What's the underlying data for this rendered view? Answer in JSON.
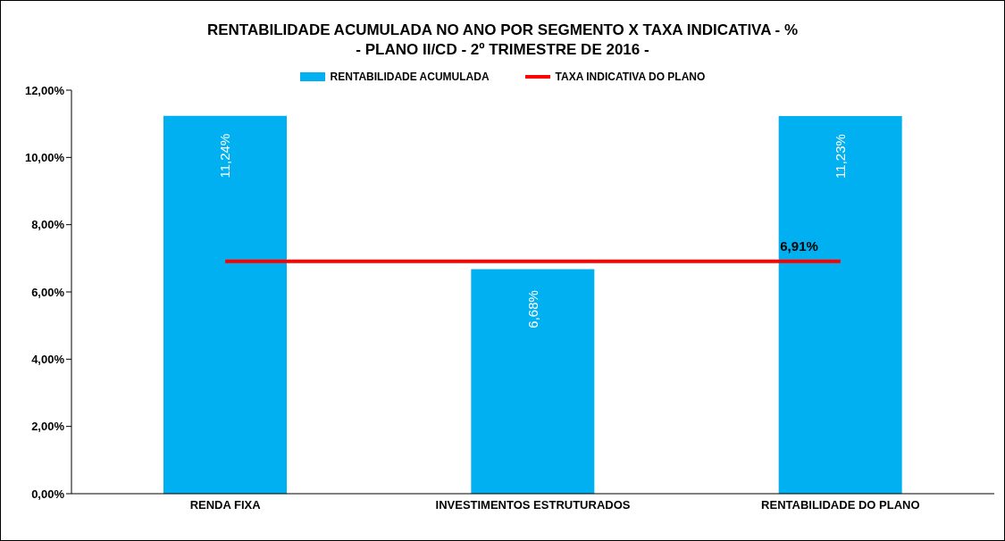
{
  "chart_data": {
    "type": "bar",
    "title": "RENTABILIDADE ACUMULADA NO ANO POR SEGMENTO X TAXA INDICATIVA  - %",
    "subtitle": "- PLANO II/CD - 2º TRIMESTRE DE 2016 -",
    "categories": [
      "RENDA FIXA",
      "INVESTIMENTOS ESTRUTURADOS",
      "RENTABILIDADE DO PLANO"
    ],
    "series": [
      {
        "name": "RENTABILIDADE ACUMULADA",
        "color": "#00b0f0",
        "values": [
          11.24,
          6.68,
          11.23
        ],
        "value_labels": [
          "11,24%",
          "6,68%",
          "11,23%"
        ]
      },
      {
        "name": "TAXA INDICATIVA DO PLANO",
        "type": "line",
        "color": "#ff0000",
        "values": [
          6.91,
          6.91,
          6.91
        ],
        "value_labels": [
          null,
          null,
          "6,91%"
        ]
      }
    ],
    "ylim": [
      0,
      12
    ],
    "yticks": [
      {
        "value": 0,
        "label": "0,00%"
      },
      {
        "value": 2,
        "label": "2,00%"
      },
      {
        "value": 4,
        "label": "4,00%"
      },
      {
        "value": 6,
        "label": "6,00%"
      },
      {
        "value": 8,
        "label": "8,00%"
      },
      {
        "value": 10,
        "label": "10,00%"
      },
      {
        "value": 12,
        "label": "12,00%"
      }
    ],
    "legend": "top"
  }
}
